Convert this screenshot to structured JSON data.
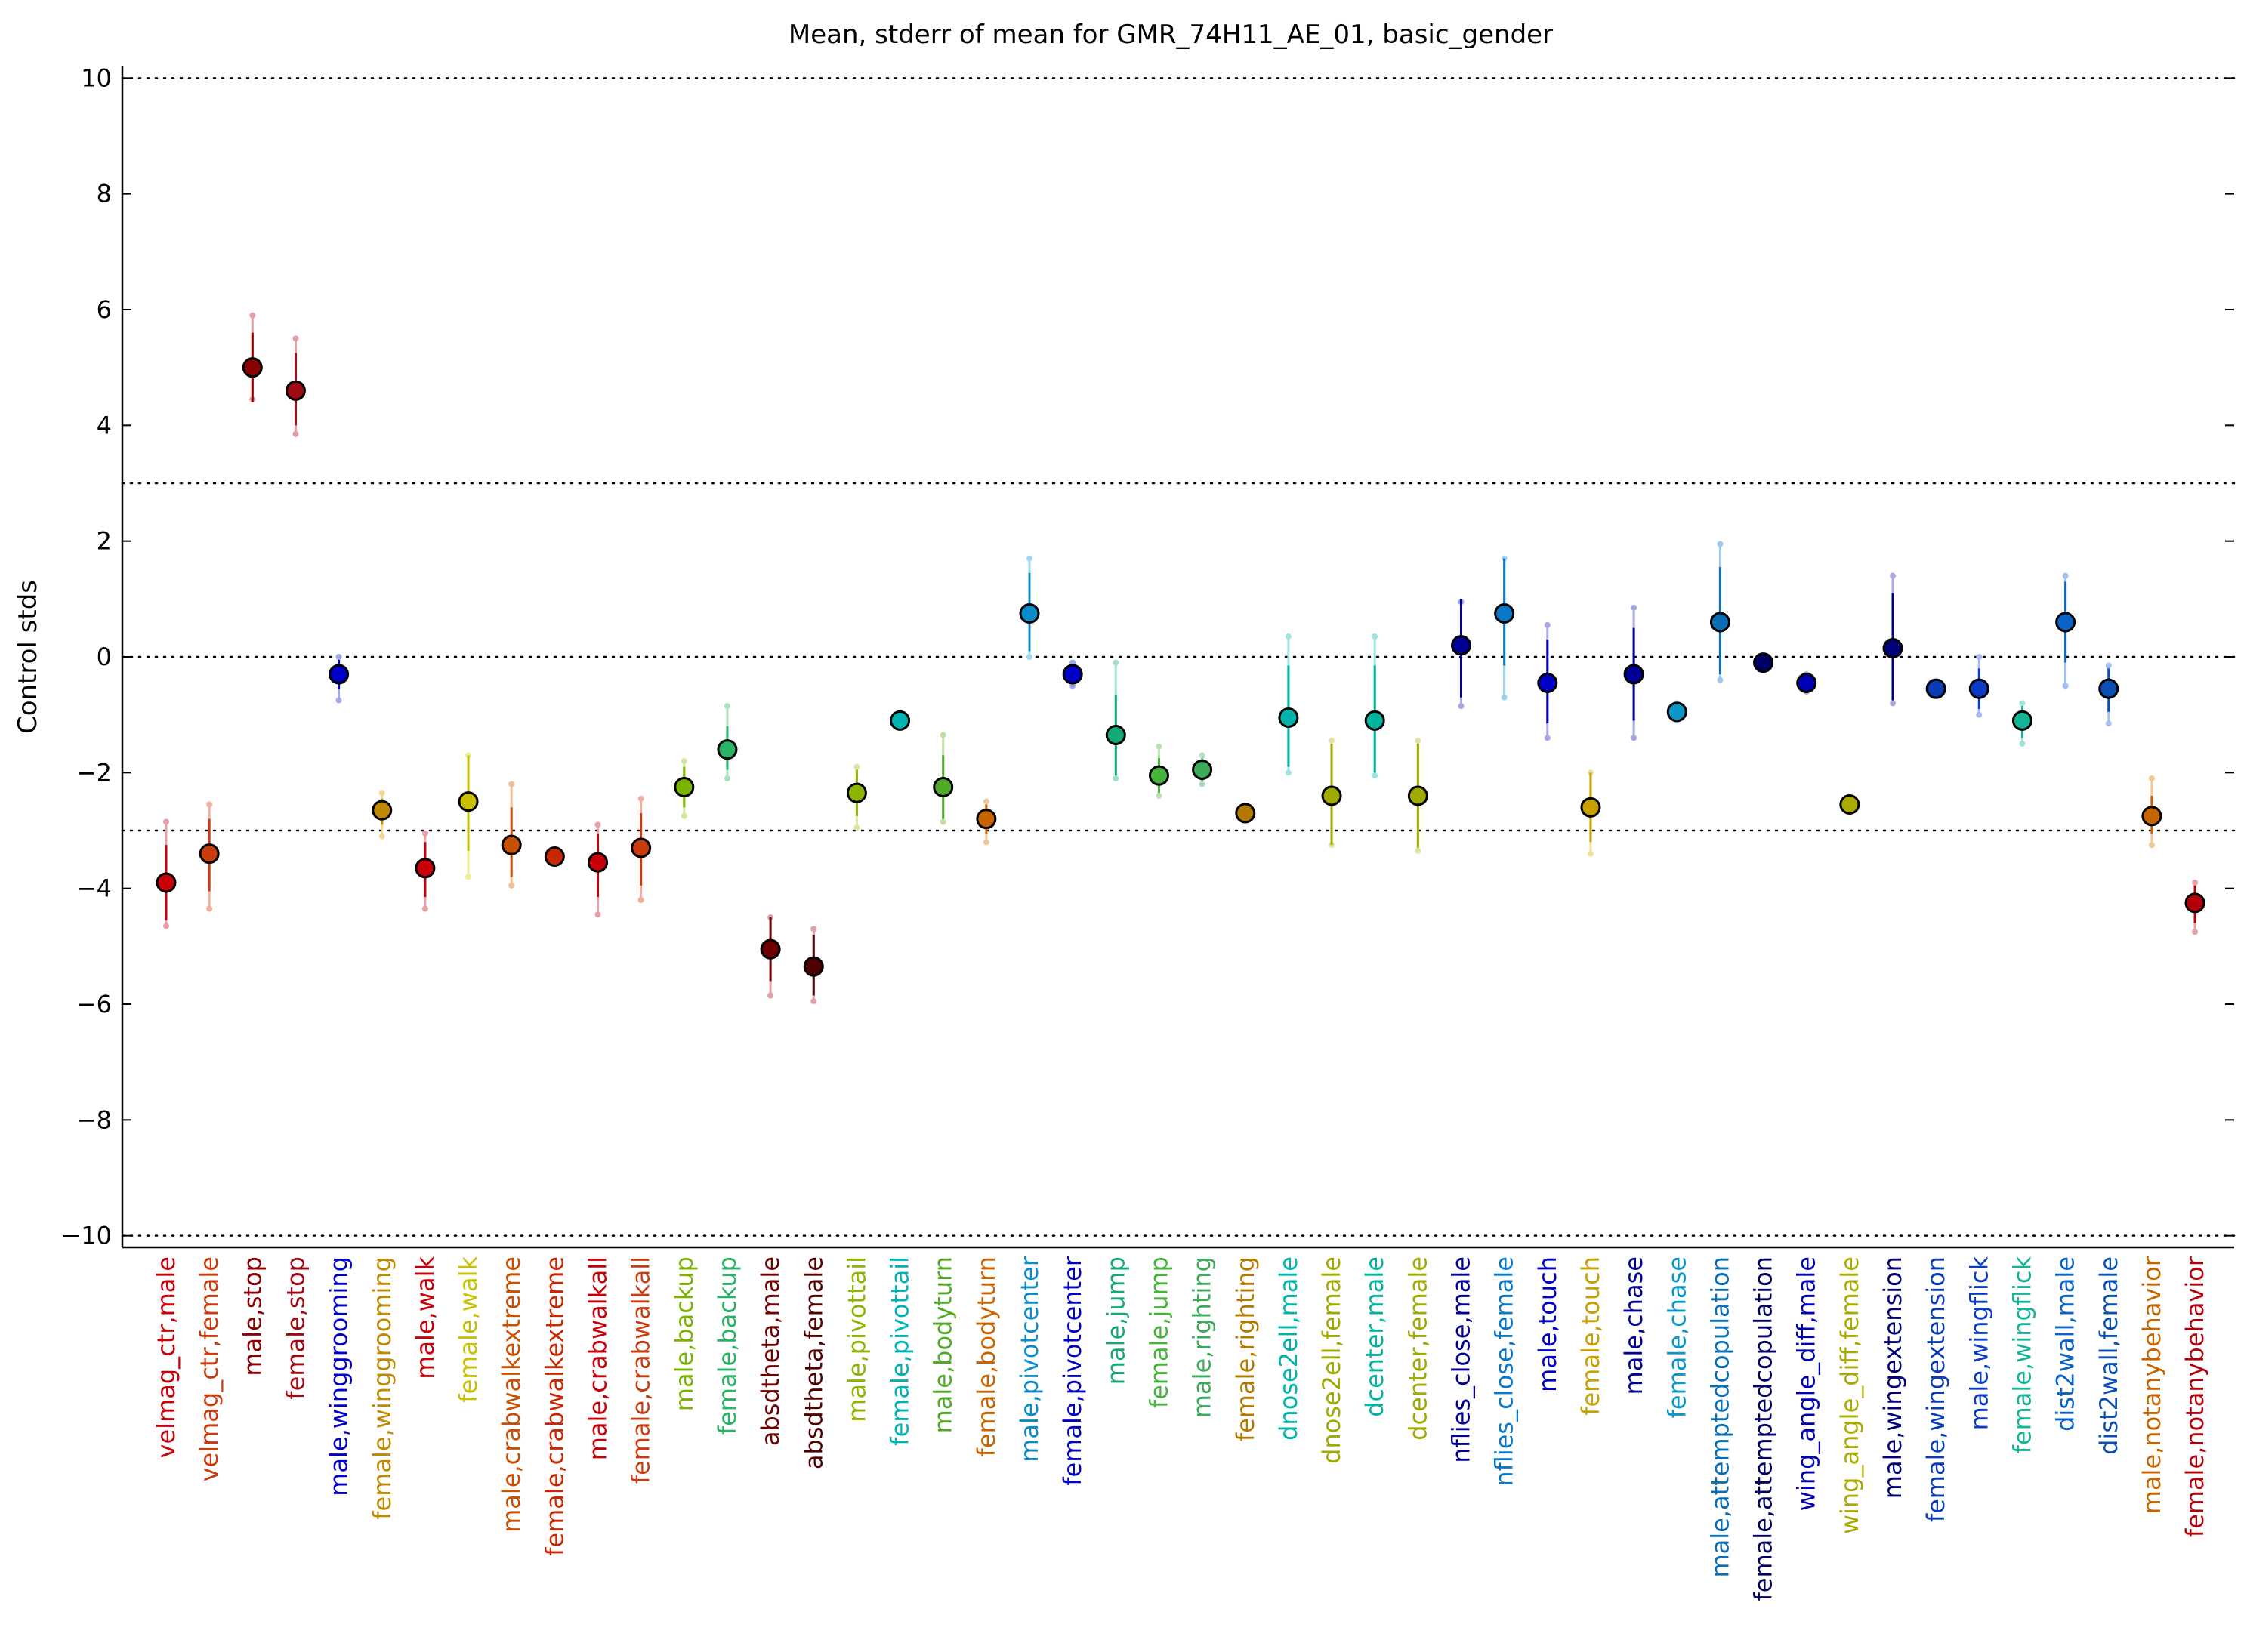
{
  "chart_data": {
    "type": "scatter",
    "title": "Mean, stderr of mean for GMR_74H11_AE_01, basic_gender",
    "xlabel": "",
    "ylabel": "Control stds",
    "ylim": [
      -10.2,
      10.2
    ],
    "yticks": [
      -10,
      -8,
      -6,
      -4,
      -2,
      0,
      2,
      4,
      6,
      8,
      10
    ],
    "ytick_labels": [
      "−10",
      "−8",
      "−6",
      "−4",
      "−2",
      "0",
      "2",
      "4",
      "6",
      "8",
      "10"
    ],
    "reference_lines": [
      -10,
      -3,
      0,
      3,
      10
    ],
    "grid": false,
    "legend": "none",
    "categories": [
      {
        "label": "velmag_ctr,male",
        "mean": -3.9,
        "err_inner": [
          -4.55,
          -3.25
        ],
        "err_outer": [
          -4.65,
          -2.85
        ],
        "color": "#c8000a",
        "label_color": "#c8000a",
        "outer_color": "#e8a0a8"
      },
      {
        "label": "velmag_ctr,female",
        "mean": -3.4,
        "err_inner": [
          -4.05,
          -2.8
        ],
        "err_outer": [
          -4.35,
          -2.55
        ],
        "color": "#c83c10",
        "label_color": "#c83c10",
        "outer_color": "#f0b0a0"
      },
      {
        "label": "male,stop",
        "mean": 5.0,
        "err_inner": [
          4.4,
          5.6
        ],
        "err_outer": [
          4.45,
          5.9
        ],
        "color": "#8b0000",
        "label_color": "#8b0000",
        "outer_color": "#e0a0a8"
      },
      {
        "label": "female,stop",
        "mean": 4.6,
        "err_inner": [
          4.0,
          5.25
        ],
        "err_outer": [
          3.85,
          5.5
        ],
        "color": "#a00a14",
        "label_color": "#a00a14",
        "outer_color": "#e0a0a8"
      },
      {
        "label": "male,winggrooming",
        "mean": -0.3,
        "err_inner": [
          -0.55,
          -0.05
        ],
        "err_outer": [
          -0.75,
          0.0
        ],
        "color": "#0000c8",
        "label_color": "#0000c8",
        "outer_color": "#a0a8e8"
      },
      {
        "label": "female,winggrooming",
        "mean": -2.65,
        "err_inner": [
          -2.9,
          -2.45
        ],
        "err_outer": [
          -3.1,
          -2.35
        ],
        "color": "#c08a00",
        "label_color": "#c08a00",
        "outer_color": "#f0d898"
      },
      {
        "label": "male,walk",
        "mean": -3.65,
        "err_inner": [
          -4.15,
          -3.2
        ],
        "err_outer": [
          -4.35,
          -3.05
        ],
        "color": "#c8000a",
        "label_color": "#c8000a",
        "outer_color": "#e8a0a8"
      },
      {
        "label": "female,walk",
        "mean": -2.5,
        "err_inner": [
          -3.35,
          -1.7
        ],
        "err_outer": [
          -3.8,
          -1.7
        ],
        "color": "#c8c000",
        "label_color": "#c8c000",
        "outer_color": "#f0ec98"
      },
      {
        "label": "male,crabwalkextreme",
        "mean": -3.25,
        "err_inner": [
          -3.8,
          -2.6
        ],
        "err_outer": [
          -3.95,
          -2.2
        ],
        "color": "#c85000",
        "label_color": "#c85000",
        "outer_color": "#f0c098"
      },
      {
        "label": "female,crabwalkextreme",
        "mean": -3.45,
        "err_inner": [
          -3.55,
          -3.35
        ],
        "err_outer": [
          -3.55,
          -3.35
        ],
        "color": "#c82800",
        "label_color": "#c82800",
        "outer_color": "#f0b098"
      },
      {
        "label": "male,crabwalkall",
        "mean": -3.55,
        "err_inner": [
          -4.15,
          -3.05
        ],
        "err_outer": [
          -4.45,
          -2.9
        ],
        "color": "#c8000a",
        "label_color": "#c8000a",
        "outer_color": "#e8a0a8"
      },
      {
        "label": "female,crabwalkall",
        "mean": -3.3,
        "err_inner": [
          -3.95,
          -2.7
        ],
        "err_outer": [
          -4.2,
          -2.45
        ],
        "color": "#c83c10",
        "label_color": "#c83c10",
        "outer_color": "#f0b0a0"
      },
      {
        "label": "male,backup",
        "mean": -2.25,
        "err_inner": [
          -2.6,
          -1.9
        ],
        "err_outer": [
          -2.75,
          -1.8
        ],
        "color": "#7ab400",
        "label_color": "#7ab400",
        "outer_color": "#d0e8a0"
      },
      {
        "label": "female,backup",
        "mean": -1.6,
        "err_inner": [
          -1.95,
          -1.2
        ],
        "err_outer": [
          -2.1,
          -0.85
        ],
        "color": "#28b464",
        "label_color": "#28b464",
        "outer_color": "#a8e0c0"
      },
      {
        "label": "absdtheta,male",
        "mean": -5.05,
        "err_inner": [
          -5.6,
          -4.5
        ],
        "err_outer": [
          -5.85,
          -4.5
        ],
        "color": "#6e0000",
        "label_color": "#6e0000",
        "outer_color": "#e0a0a8"
      },
      {
        "label": "absdtheta,female",
        "mean": -5.35,
        "err_inner": [
          -5.85,
          -4.8
        ],
        "err_outer": [
          -5.95,
          -4.7
        ],
        "color": "#500000",
        "label_color": "#500000",
        "outer_color": "#e0a0a8"
      },
      {
        "label": "male,pivottail",
        "mean": -2.35,
        "err_inner": [
          -2.75,
          -1.95
        ],
        "err_outer": [
          -2.95,
          -1.9
        ],
        "color": "#8cb400",
        "label_color": "#8cb400",
        "outer_color": "#d8e8a0"
      },
      {
        "label": "female,pivottail",
        "mean": -1.1,
        "err_inner": [
          -1.2,
          -1.0
        ],
        "err_outer": [
          -1.2,
          -1.0
        ],
        "color": "#00b4b4",
        "label_color": "#00b4b4",
        "outer_color": "#a0e0e0"
      },
      {
        "label": "male,bodyturn",
        "mean": -2.25,
        "err_inner": [
          -2.8,
          -1.7
        ],
        "err_outer": [
          -2.85,
          -1.35
        ],
        "color": "#50aa28",
        "label_color": "#50aa28",
        "outer_color": "#c0e0a8"
      },
      {
        "label": "female,bodyturn",
        "mean": -2.8,
        "err_inner": [
          -3.05,
          -2.55
        ],
        "err_outer": [
          -3.2,
          -2.5
        ],
        "color": "#c86400",
        "label_color": "#c86400",
        "outer_color": "#f0c898"
      },
      {
        "label": "male,pivotcenter",
        "mean": 0.75,
        "err_inner": [
          0.1,
          1.45
        ],
        "err_outer": [
          0.0,
          1.7
        ],
        "color": "#0a8cc8",
        "label_color": "#0a8cc8",
        "outer_color": "#a0d8f0"
      },
      {
        "label": "female,pivotcenter",
        "mean": -0.3,
        "err_inner": [
          -0.45,
          -0.15
        ],
        "err_outer": [
          -0.5,
          -0.1
        ],
        "color": "#0000c8",
        "label_color": "#0000c8",
        "outer_color": "#a0a8e8"
      },
      {
        "label": "male,jump",
        "mean": -1.35,
        "err_inner": [
          -2.05,
          -0.65
        ],
        "err_outer": [
          -2.1,
          -0.1
        ],
        "color": "#14aa78",
        "label_color": "#14aa78",
        "outer_color": "#a0e0c8"
      },
      {
        "label": "female,jump",
        "mean": -2.05,
        "err_inner": [
          -2.35,
          -1.75
        ],
        "err_outer": [
          -2.4,
          -1.55
        ],
        "color": "#46b43c",
        "label_color": "#46b43c",
        "outer_color": "#b8e4b0"
      },
      {
        "label": "male,righting",
        "mean": -1.95,
        "err_inner": [
          -2.15,
          -1.75
        ],
        "err_outer": [
          -2.2,
          -1.7
        ],
        "color": "#3caa5a",
        "label_color": "#3caa5a",
        "outer_color": "#b0e0c0"
      },
      {
        "label": "female,righting",
        "mean": -2.7,
        "err_inner": [
          -2.75,
          -2.65
        ],
        "err_outer": [
          -2.75,
          -2.65
        ],
        "color": "#b47800",
        "label_color": "#b47800",
        "outer_color": "#e8d098"
      },
      {
        "label": "dnose2ell,male",
        "mean": -1.05,
        "err_inner": [
          -1.9,
          -0.15
        ],
        "err_outer": [
          -2.0,
          0.35
        ],
        "color": "#00b4aa",
        "label_color": "#00b4aa",
        "outer_color": "#a0e4e0"
      },
      {
        "label": "dnose2ell,female",
        "mean": -2.4,
        "err_inner": [
          -3.25,
          -1.5
        ],
        "err_outer": [
          -3.25,
          -1.45
        ],
        "color": "#a0aa00",
        "label_color": "#a0aa00",
        "outer_color": "#e0e4a0"
      },
      {
        "label": "dcenter,male",
        "mean": -1.1,
        "err_inner": [
          -2.0,
          -0.15
        ],
        "err_outer": [
          -2.05,
          0.35
        ],
        "color": "#00b4a0",
        "label_color": "#00b4a0",
        "outer_color": "#a0e4dc"
      },
      {
        "label": "dcenter,female",
        "mean": -2.4,
        "err_inner": [
          -3.3,
          -1.5
        ],
        "err_outer": [
          -3.35,
          -1.45
        ],
        "color": "#a0aa00",
        "label_color": "#a0aa00",
        "outer_color": "#e0e4a0"
      },
      {
        "label": "nflies_close,male",
        "mean": 0.2,
        "err_inner": [
          -0.7,
          1.0
        ],
        "err_outer": [
          -0.85,
          0.95
        ],
        "color": "#000096",
        "label_color": "#000096",
        "outer_color": "#a8a8e0"
      },
      {
        "label": "nflies_close,female",
        "mean": 0.75,
        "err_inner": [
          -0.15,
          1.7
        ],
        "err_outer": [
          -0.7,
          1.7
        ],
        "color": "#0a78c8",
        "label_color": "#0a78c8",
        "outer_color": "#a0d0f0"
      },
      {
        "label": "male,touch",
        "mean": -0.45,
        "err_inner": [
          -1.15,
          0.3
        ],
        "err_outer": [
          -1.4,
          0.55
        ],
        "color": "#0000c8",
        "label_color": "#0000c8",
        "outer_color": "#a8a8e8"
      },
      {
        "label": "female,touch",
        "mean": -2.6,
        "err_inner": [
          -3.2,
          -2.0
        ],
        "err_outer": [
          -3.4,
          -2.0
        ],
        "color": "#c8a000",
        "label_color": "#c8a000",
        "outer_color": "#f0e098"
      },
      {
        "label": "male,chase",
        "mean": -0.3,
        "err_inner": [
          -1.1,
          0.5
        ],
        "err_outer": [
          -1.4,
          0.85
        ],
        "color": "#000096",
        "label_color": "#000096",
        "outer_color": "#a8a8e0"
      },
      {
        "label": "female,chase",
        "mean": -0.95,
        "err_inner": [
          -1.05,
          -0.85
        ],
        "err_outer": [
          -1.1,
          -0.8
        ],
        "color": "#0a96c8",
        "label_color": "#0a96c8",
        "outer_color": "#a0d8f0"
      },
      {
        "label": "male,attemptedcopulation",
        "mean": 0.6,
        "err_inner": [
          -0.3,
          1.55
        ],
        "err_outer": [
          -0.4,
          1.95
        ],
        "color": "#0a6eb4",
        "label_color": "#0a6eb4",
        "outer_color": "#a0c8ec"
      },
      {
        "label": "female,attemptedcopulation",
        "mean": -0.1,
        "err_inner": [
          -0.15,
          -0.05
        ],
        "err_outer": [
          -0.15,
          -0.05
        ],
        "color": "#000064",
        "label_color": "#000064",
        "outer_color": "#a8a8d8"
      },
      {
        "label": "wing_angle_diff,male",
        "mean": -0.45,
        "err_inner": [
          -0.55,
          -0.35
        ],
        "err_outer": [
          -0.6,
          -0.3
        ],
        "color": "#0000b4",
        "label_color": "#0000b4",
        "outer_color": "#a8a8e8"
      },
      {
        "label": "wing_angle_diff,female",
        "mean": -2.55,
        "err_inner": [
          -2.6,
          -2.5
        ],
        "err_outer": [
          -2.6,
          -2.5
        ],
        "color": "#aaaa00",
        "label_color": "#aaaa00",
        "outer_color": "#e8e8a0"
      },
      {
        "label": "male,wingextension",
        "mean": 0.15,
        "err_inner": [
          -0.75,
          1.1
        ],
        "err_outer": [
          -0.8,
          1.4
        ],
        "color": "#000078",
        "label_color": "#000078",
        "outer_color": "#b0a8e0"
      },
      {
        "label": "female,wingextension",
        "mean": -0.55,
        "err_inner": [
          -0.6,
          -0.5
        ],
        "err_outer": [
          -0.6,
          -0.5
        ],
        "color": "#0a3cb4",
        "label_color": "#0a3cb4",
        "outer_color": "#a8b8e8"
      },
      {
        "label": "male,wingflick",
        "mean": -0.55,
        "err_inner": [
          -0.9,
          -0.2
        ],
        "err_outer": [
          -1.0,
          0.0
        ],
        "color": "#0a3cc8",
        "label_color": "#0a3cc8",
        "outer_color": "#a8b8f0"
      },
      {
        "label": "female,wingflick",
        "mean": -1.1,
        "err_inner": [
          -1.4,
          -0.85
        ],
        "err_outer": [
          -1.5,
          -0.8
        ],
        "color": "#14b496",
        "label_color": "#14b496",
        "outer_color": "#a0e4d8"
      },
      {
        "label": "dist2wall,male",
        "mean": 0.6,
        "err_inner": [
          -0.1,
          1.3
        ],
        "err_outer": [
          -0.5,
          1.4
        ],
        "color": "#0a64c8",
        "label_color": "#0a64c8",
        "outer_color": "#a0c0f0"
      },
      {
        "label": "dist2wall,female",
        "mean": -0.55,
        "err_inner": [
          -0.95,
          -0.2
        ],
        "err_outer": [
          -1.15,
          -0.15
        ],
        "color": "#0a50b4",
        "label_color": "#0a50b4",
        "outer_color": "#a8c0ec"
      },
      {
        "label": "male,notanybehavior",
        "mean": -2.75,
        "err_inner": [
          -3.05,
          -2.4
        ],
        "err_outer": [
          -3.25,
          -2.1
        ],
        "color": "#c86400",
        "label_color": "#c86400",
        "outer_color": "#f0c898"
      },
      {
        "label": "female,notanybehavior",
        "mean": -4.25,
        "err_inner": [
          -4.6,
          -3.95
        ],
        "err_outer": [
          -4.75,
          -3.9
        ],
        "color": "#b4000a",
        "label_color": "#b4000a",
        "outer_color": "#e8a0a8"
      }
    ]
  }
}
